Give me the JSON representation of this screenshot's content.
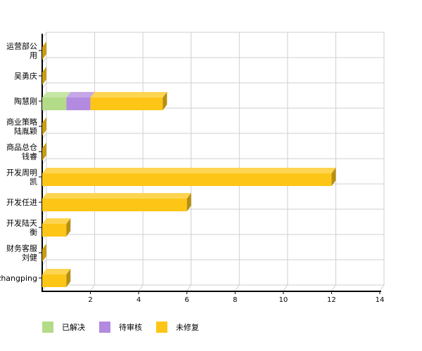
{
  "chart_data": {
    "type": "bar",
    "orientation": "horizontal",
    "stacked": true,
    "three_d": true,
    "categories": [
      [
        "运营部公",
        "用"
      ],
      [
        "吴勇庆"
      ],
      [
        "陶慧刚"
      ],
      [
        "商业策略",
        "陆胤颖"
      ],
      [
        "商品总仓",
        "钱睿"
      ],
      [
        "开发周明",
        "凯"
      ],
      [
        "开发任进"
      ],
      [
        "开发陆天",
        "衡"
      ],
      [
        "财务客服",
        "刘健"
      ],
      [
        "zhangping"
      ]
    ],
    "series": [
      {
        "name": "已解决",
        "color": "#b3dc88",
        "values": [
          0,
          0,
          1,
          0,
          0,
          0,
          0,
          0,
          0,
          0
        ]
      },
      {
        "name": "待审核",
        "color": "#b28adf",
        "values": [
          0,
          0,
          1,
          0,
          0,
          0,
          0,
          0,
          0,
          0
        ]
      },
      {
        "name": "未修复",
        "color": "#fdc617",
        "values": [
          0,
          0,
          3,
          0,
          0,
          12,
          6,
          1,
          0,
          1
        ]
      }
    ],
    "x_ticks": [
      "2",
      "4",
      "6",
      "8",
      "10",
      "12",
      "14"
    ],
    "xlim": [
      0,
      14
    ],
    "grid": true,
    "legend_position": "bottom-left"
  }
}
